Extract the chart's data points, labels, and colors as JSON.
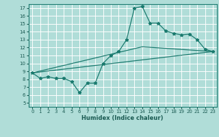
{
  "xlabel": "Humidex (Indice chaleur)",
  "background_color": "#b0ddd8",
  "grid_color": "#ffffff",
  "line_color": "#1a7a6e",
  "xlim": [
    -0.5,
    23.5
  ],
  "ylim": [
    4.5,
    17.5
  ],
  "xticks": [
    0,
    1,
    2,
    3,
    4,
    5,
    6,
    7,
    8,
    9,
    10,
    11,
    12,
    13,
    14,
    15,
    16,
    17,
    18,
    19,
    20,
    21,
    22,
    23
  ],
  "yticks": [
    5,
    6,
    7,
    8,
    9,
    10,
    11,
    12,
    13,
    14,
    15,
    16,
    17
  ],
  "line1_x": [
    0,
    1,
    2,
    3,
    4,
    5,
    6,
    7,
    8,
    9,
    10,
    11,
    12,
    13,
    14,
    15,
    16,
    17,
    18,
    19,
    20,
    21,
    22,
    23
  ],
  "line1_y": [
    8.8,
    8.1,
    8.3,
    8.1,
    8.1,
    7.7,
    6.3,
    7.5,
    7.5,
    10.0,
    11.0,
    11.5,
    13.0,
    17.0,
    17.2,
    15.1,
    15.1,
    14.1,
    13.8,
    13.6,
    13.7,
    13.0,
    11.8,
    11.5
  ],
  "line2_x": [
    0,
    23
  ],
  "line2_y": [
    8.8,
    11.5
  ],
  "line3_x": [
    0,
    14,
    23
  ],
  "line3_y": [
    8.8,
    12.1,
    11.5
  ]
}
